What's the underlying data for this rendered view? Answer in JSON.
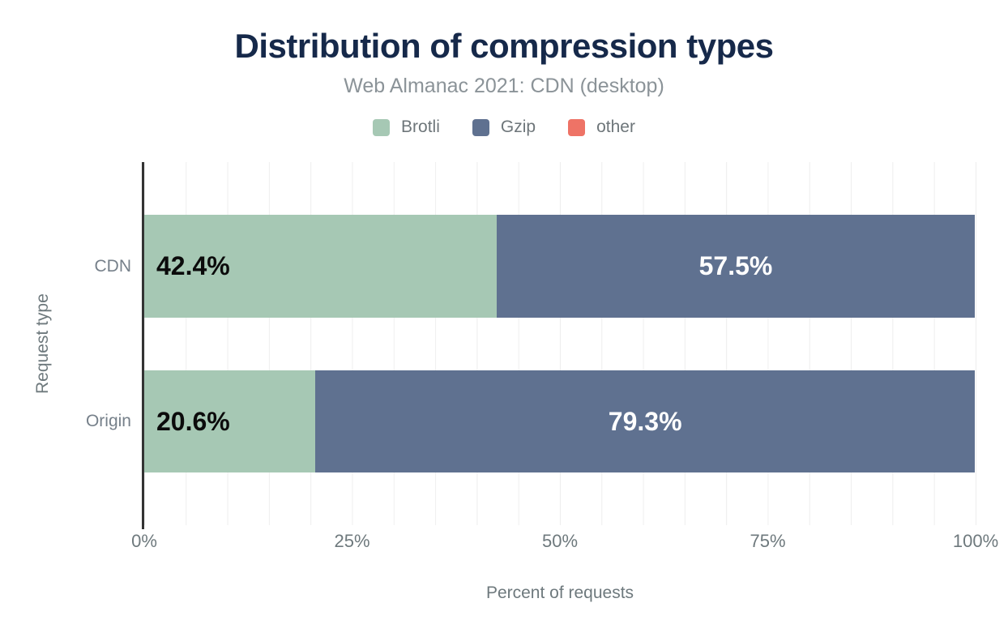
{
  "title": "Distribution of compression types",
  "subtitle": "Web Almanac 2021: CDN (desktop)",
  "legend": [
    {
      "name": "Brotli",
      "color": "#a6c8b4"
    },
    {
      "name": "Gzip",
      "color": "#5f7190"
    },
    {
      "name": "other",
      "color": "#ee7366"
    }
  ],
  "colors": {
    "title": "#16294a",
    "subtitle": "#8b9398",
    "axis_text": "#6e797d",
    "axis_line": "#333333",
    "gridline": "#eeeeee",
    "brotli": "#a6c8b4",
    "gzip": "#5f7190",
    "other": "#ee7366"
  },
  "chart_data": {
    "type": "bar",
    "orientation": "horizontal",
    "stacked": true,
    "title": "Distribution of compression types",
    "subtitle": "Web Almanac 2021: CDN (desktop)",
    "xlabel": "Percent of requests",
    "ylabel": "Request type",
    "categories": [
      "CDN",
      "Origin"
    ],
    "series": [
      {
        "name": "Brotli",
        "color": "#a6c8b4",
        "values": [
          42.4,
          20.6
        ],
        "data_labels": [
          "42.4%",
          "20.6%"
        ],
        "label_color": "#0b0b0b",
        "label_align": "start"
      },
      {
        "name": "Gzip",
        "color": "#5f7190",
        "values": [
          57.5,
          79.3
        ],
        "data_labels": [
          "57.5%",
          "79.3%"
        ],
        "label_color": "#ffffff",
        "label_align": "center"
      }
    ],
    "xlim": [
      0,
      100
    ],
    "x_ticks": [
      "0%",
      "25%",
      "50%",
      "75%",
      "100%"
    ],
    "x_tick_positions": [
      0,
      25,
      50,
      75,
      100
    ],
    "grid": {
      "vertical": true,
      "minor_interval_percent": 5
    },
    "legend_position": "top"
  }
}
